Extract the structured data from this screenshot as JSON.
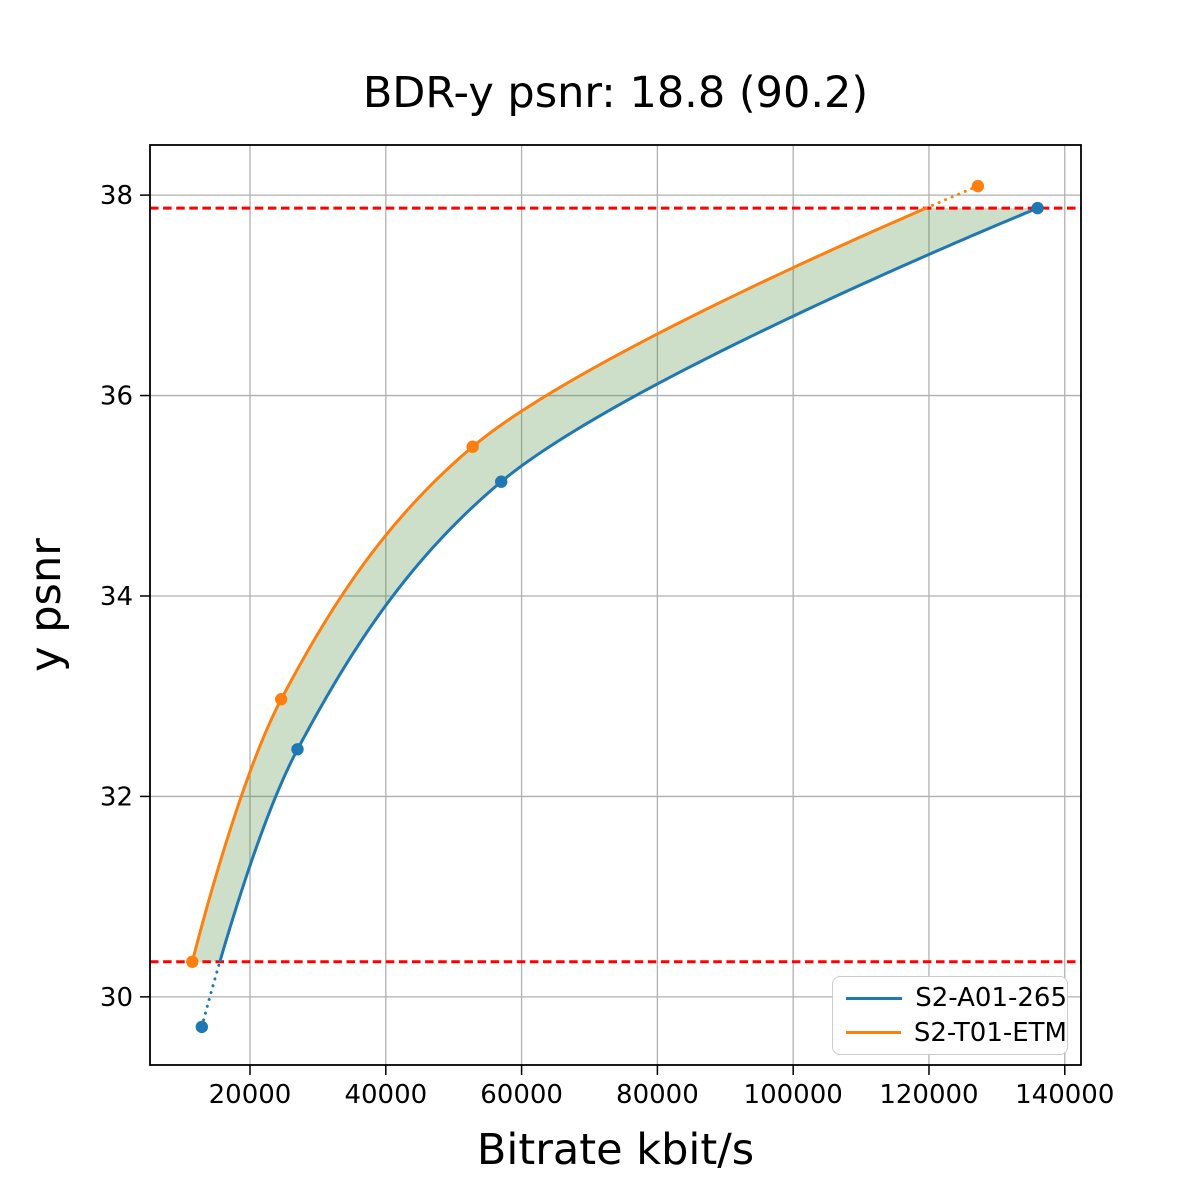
{
  "chart_data": {
    "type": "line",
    "title": "BDR-y psnr: 18.8 (90.2)",
    "xlabel": "Bitrate kbit/s",
    "ylabel": "y psnr",
    "xlim": [
      5270,
      142390
    ],
    "ylim": [
      29.32,
      38.5
    ],
    "x_ticks": [
      20000,
      40000,
      60000,
      80000,
      100000,
      120000,
      140000
    ],
    "y_ticks": [
      30,
      32,
      34,
      36,
      38
    ],
    "grid": true,
    "grid_color": "#b0b0b0",
    "legend": {
      "position": "lower right",
      "entries": [
        "S2-A01-265",
        "S2-T01-ETM"
      ]
    },
    "series": [
      {
        "name": "S2-A01-265",
        "color": "#1f77b4",
        "points": [
          [
            12900,
            29.7
          ],
          [
            27000,
            32.47
          ],
          [
            57000,
            35.14
          ],
          [
            136000,
            37.87
          ]
        ]
      },
      {
        "name": "S2-T01-ETM",
        "color": "#ff7f0e",
        "points": [
          [
            11500,
            30.35
          ],
          [
            24600,
            32.97
          ],
          [
            52800,
            35.49
          ],
          [
            127200,
            38.09
          ]
        ]
      }
    ],
    "bd_bounds": {
      "color": "#ff0000",
      "style": "dashed",
      "upper": 37.87,
      "lower": 30.35
    },
    "shaded_region": {
      "between": [
        "S2-T01-ETM",
        "S2-A01-265"
      ],
      "y_range": [
        30.35,
        37.87
      ],
      "color": "rgba(76,140,60,0.28)"
    }
  }
}
